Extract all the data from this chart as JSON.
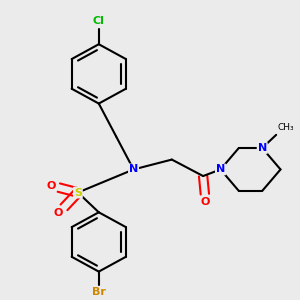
{
  "background_color": "#ebebeb",
  "bond_color": "#000000",
  "atom_colors": {
    "N": "#0000ff",
    "O": "#ff0000",
    "S": "#cccc00",
    "Cl": "#00bb00",
    "Br": "#cc8800"
  },
  "bond_width": 1.5,
  "figsize": [
    3.0,
    3.0
  ],
  "dpi": 100
}
